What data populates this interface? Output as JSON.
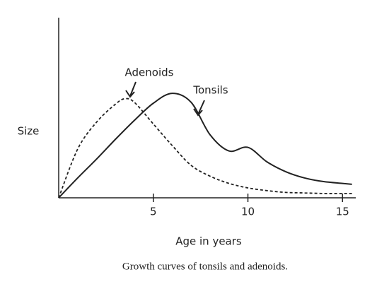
{
  "chart_data": {
    "type": "line",
    "caption": "Growth curves of tonsils and adenoids.",
    "xlabel": "Age in years",
    "ylabel": "Size",
    "xlim": [
      0,
      15.7
    ],
    "xticks": [
      5,
      10,
      15
    ],
    "ylim": [
      0,
      100
    ],
    "series": [
      {
        "name": "Tonsils",
        "color": "#222222",
        "dashed": false,
        "x": [
          0,
          1,
          2,
          3,
          4,
          5,
          6,
          7,
          8,
          9,
          10,
          11,
          12,
          13,
          14,
          15,
          15.5
        ],
        "values": [
          0,
          11,
          21.5,
          32.5,
          43,
          52.5,
          58,
          53,
          35,
          26,
          28,
          20,
          14.5,
          11,
          9,
          8,
          7.5
        ]
      },
      {
        "name": "Adenoids",
        "color": "#222222",
        "dashed": true,
        "x": [
          0,
          1,
          2,
          3,
          3.5,
          4,
          5,
          6,
          7,
          8,
          9,
          10,
          11,
          12,
          13,
          14,
          15,
          15.5
        ],
        "values": [
          0,
          27,
          42,
          52,
          55,
          53,
          41,
          29,
          18,
          12,
          8,
          5.5,
          4,
          3,
          2.7,
          2.4,
          2.4,
          2.4
        ]
      }
    ],
    "annotations": [
      "Adenoids",
      "Tonsils"
    ]
  }
}
